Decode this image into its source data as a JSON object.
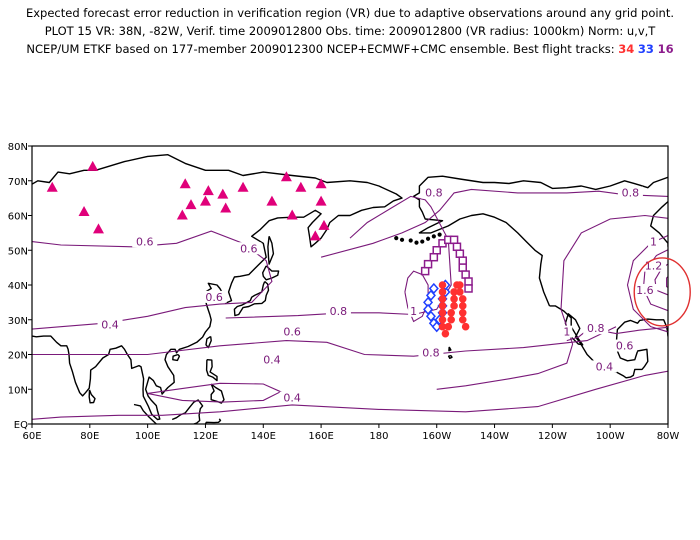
{
  "header": {
    "line1": "Expected forecast error reduction in verification region (VR) due to adaptive observations around any grid point.",
    "line2": "PLOT 15 VR: 38N, -82W, Verif. time 2009012800 Obs. time: 2009012800 (VR radius: 1000km) Norm: u,v,T",
    "line3_prefix": "NCEP/UM ETKF based on 177-member 2009012300 NCEP+ECMWF+CMC ensemble. Best flight tracks: ",
    "tracks": [
      {
        "number": "34",
        "color": "#ff3030"
      },
      {
        "number": "33",
        "color": "#2040ff"
      },
      {
        "number": "16",
        "color": "#8c1c8c"
      }
    ]
  },
  "axes": {
    "y_ticks": [
      "0N",
      "10N",
      "20N",
      "30N",
      "40N",
      "50N",
      "60N",
      "70N",
      "80N"
    ],
    "y_bottom_label": "EQ",
    "x_ticks": [
      "60E",
      "80E",
      "100E",
      "120E",
      "140E",
      "160E",
      "180",
      "160W",
      "140W",
      "120W",
      "100W",
      "80W"
    ]
  },
  "contour_labels": [
    {
      "text": "0.6",
      "lon": 99,
      "lat": 52
    },
    {
      "text": "0.6",
      "lon": 135,
      "lat": 50
    },
    {
      "text": "0.6",
      "lon": 123,
      "lat": 36
    },
    {
      "text": "0.4",
      "lon": 87,
      "lat": 28
    },
    {
      "text": "0.6",
      "lon": 150,
      "lat": 26
    },
    {
      "text": "0.8",
      "lon": 166,
      "lat": 32
    },
    {
      "text": "0.4",
      "lon": 150,
      "lat": 7
    },
    {
      "text": "0.4",
      "lon": 143,
      "lat": 18
    },
    {
      "text": "0.8",
      "lon": 199,
      "lat": 66
    },
    {
      "text": "0.8",
      "lon": 198,
      "lat": 20
    },
    {
      "text": "0.8",
      "lon": 267,
      "lat": 66
    },
    {
      "text": "0.8",
      "lon": 255,
      "lat": 27
    },
    {
      "text": "1",
      "lon": 192,
      "lat": 32
    },
    {
      "text": "1",
      "lon": 275,
      "lat": 52
    },
    {
      "text": "1.2",
      "lon": 275,
      "lat": 45
    },
    {
      "text": "1.6",
      "lon": 272,
      "lat": 38
    },
    {
      "text": "0.6",
      "lon": 265,
      "lat": 22
    },
    {
      "text": "0.4",
      "lon": 258,
      "lat": 16
    },
    {
      "text": "1",
      "lon": 245,
      "lat": 26
    }
  ],
  "raob_sites": [
    {
      "lon": 67,
      "lat": 68
    },
    {
      "lon": 81,
      "lat": 74
    },
    {
      "lon": 78,
      "lat": 61
    },
    {
      "lon": 83,
      "lat": 56
    },
    {
      "lon": 113,
      "lat": 69
    },
    {
      "lon": 115,
      "lat": 63
    },
    {
      "lon": 112,
      "lat": 60
    },
    {
      "lon": 120,
      "lat": 64
    },
    {
      "lon": 121,
      "lat": 67
    },
    {
      "lon": 126,
      "lat": 66
    },
    {
      "lon": 127,
      "lat": 62
    },
    {
      "lon": 133,
      "lat": 68
    },
    {
      "lon": 143,
      "lat": 64
    },
    {
      "lon": 148,
      "lat": 71
    },
    {
      "lon": 150,
      "lat": 60
    },
    {
      "lon": 153,
      "lat": 68
    },
    {
      "lon": 160,
      "lat": 69
    },
    {
      "lon": 160,
      "lat": 64
    },
    {
      "lon": 158,
      "lat": 54
    },
    {
      "lon": 161,
      "lat": 57
    }
  ],
  "flight_tracks": [
    {
      "number": "16",
      "color": "#8c1c8c",
      "shape": "square",
      "points": [
        [
          -164,
          44
        ],
        [
          -163,
          46
        ],
        [
          -161,
          48
        ],
        [
          -160,
          50
        ],
        [
          -158,
          52
        ],
        [
          -156,
          53
        ],
        [
          -154,
          53
        ],
        [
          -153,
          51
        ],
        [
          -152,
          49
        ],
        [
          -151,
          47
        ],
        [
          -151,
          45
        ],
        [
          -150,
          43
        ],
        [
          -149,
          41
        ],
        [
          -149,
          39
        ]
      ]
    },
    {
      "number": "33",
      "color": "#2040ff",
      "shape": "diamond",
      "points": [
        [
          -161,
          39
        ],
        [
          -162,
          37
        ],
        [
          -163,
          35
        ],
        [
          -163,
          33
        ],
        [
          -162,
          31
        ],
        [
          -161,
          29
        ],
        [
          -160,
          28
        ],
        [
          -159,
          30
        ],
        [
          -158,
          32
        ],
        [
          -158,
          34
        ],
        [
          -158,
          36
        ],
        [
          -157,
          38
        ],
        [
          -157,
          40
        ]
      ]
    },
    {
      "number": "34",
      "color": "#ff3030",
      "shape": "circle",
      "points": [
        [
          -158,
          40
        ],
        [
          -158,
          38
        ],
        [
          -158,
          36
        ],
        [
          -158,
          34
        ],
        [
          -158,
          32
        ],
        [
          -158,
          30
        ],
        [
          -158,
          28
        ],
        [
          -157,
          26
        ],
        [
          -156,
          28
        ],
        [
          -155,
          30
        ],
        [
          -155,
          32
        ],
        [
          -154,
          34
        ],
        [
          -154,
          36
        ],
        [
          -154,
          38
        ],
        [
          -153,
          40
        ],
        [
          -152,
          40
        ],
        [
          -152,
          38
        ],
        [
          -151,
          36
        ],
        [
          -151,
          34
        ],
        [
          -151,
          32
        ],
        [
          -151,
          30
        ],
        [
          -150,
          28
        ]
      ]
    }
  ],
  "verification_region": {
    "lat": 38,
    "lon": -82
  },
  "colors": {
    "contour": "#7a1a7a",
    "coast": "#000000",
    "raob": "#e0007a",
    "vr_circle": "#e03030"
  }
}
